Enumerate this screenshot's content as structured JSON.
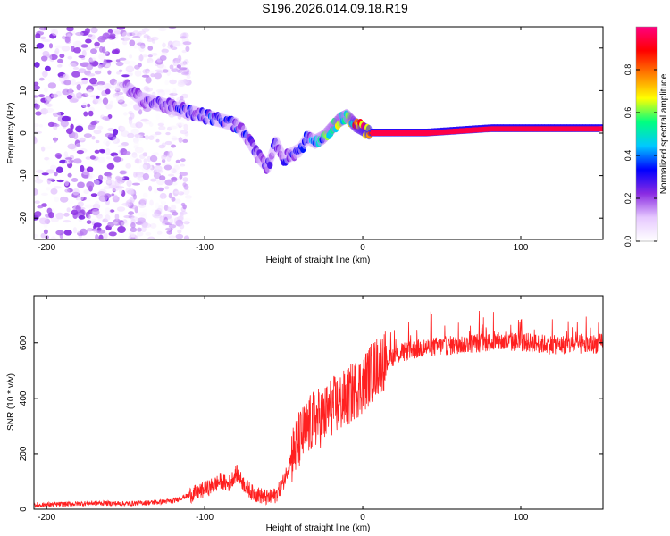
{
  "title": "S196.2026.014.09.18.R19",
  "chart_data": [
    {
      "type": "heatmap",
      "title": "S196.2026.014.09.18.R19",
      "xlabel": "Height of straight line (km)",
      "ylabel": "Frequency (Hz)",
      "xlim": [
        -208,
        152
      ],
      "ylim": [
        -25,
        25
      ],
      "xticks": [
        -200,
        -100,
        0,
        100
      ],
      "yticks": [
        -20,
        -10,
        0,
        10,
        20
      ],
      "colorbar": {
        "label": "Normalized spectral amplitude",
        "range": [
          0.0,
          1.0
        ],
        "ticks": [
          0.0,
          0.2,
          0.4,
          0.6,
          0.8
        ],
        "colors": [
          "#ffffff",
          "#e6c8ff",
          "#8a2be2",
          "#0000ff",
          "#00c8ff",
          "#00ff80",
          "#ffff00",
          "#ff8000",
          "#ff0000",
          "#ff0080"
        ]
      },
      "ridge": {
        "x": [
          -150,
          -140,
          -130,
          -120,
          -110,
          -100,
          -90,
          -80,
          -75,
          -70,
          -65,
          -60,
          -55,
          -50,
          -45,
          -40,
          -35,
          -30,
          -25,
          -20,
          -15,
          -10,
          -5,
          0,
          5,
          10,
          20,
          40,
          60,
          80,
          100,
          120,
          150
        ],
        "y": [
          11,
          8,
          7,
          6,
          5,
          4,
          3,
          2,
          0,
          -3,
          -6,
          -8,
          -2,
          -6,
          -5,
          -4,
          -1,
          -2,
          -1,
          1,
          3,
          4,
          2,
          1,
          0,
          0,
          0,
          0,
          0.5,
          1,
          1,
          1,
          1
        ],
        "amplitude": [
          0.18,
          0.2,
          0.22,
          0.25,
          0.25,
          0.3,
          0.3,
          0.3,
          0.28,
          0.25,
          0.25,
          0.22,
          0.25,
          0.25,
          0.25,
          0.28,
          0.3,
          0.4,
          0.45,
          0.5,
          0.55,
          0.45,
          0.7,
          0.75,
          0.85,
          0.9,
          0.92,
          0.95,
          0.95,
          0.95,
          0.95,
          0.95,
          0.95
        ]
      }
    },
    {
      "type": "line",
      "xlabel": "Height of straight line (km)",
      "ylabel": "SNR (10 * v/v)",
      "xlim": [
        -208,
        152
      ],
      "ylim": [
        0,
        770
      ],
      "xticks": [
        -200,
        -100,
        0,
        100
      ],
      "yticks": [
        0,
        200,
        400,
        600
      ],
      "color": "#ff2020",
      "series": [
        {
          "name": "SNR",
          "x": [
            -208,
            -190,
            -170,
            -150,
            -130,
            -120,
            -110,
            -100,
            -90,
            -85,
            -80,
            -75,
            -70,
            -65,
            -60,
            -55,
            -50,
            -45,
            -40,
            -35,
            -30,
            -25,
            -20,
            -15,
            -10,
            -5,
            0,
            5,
            10,
            15,
            20,
            30,
            40,
            60,
            80,
            100,
            120,
            140,
            152
          ],
          "y": [
            15,
            18,
            22,
            20,
            25,
            30,
            50,
            70,
            100,
            90,
            130,
            90,
            60,
            50,
            40,
            50,
            100,
            190,
            250,
            290,
            330,
            330,
            370,
            380,
            400,
            430,
            450,
            490,
            520,
            540,
            560,
            580,
            590,
            600,
            610,
            610,
            600,
            600,
            605
          ]
        }
      ]
    }
  ]
}
